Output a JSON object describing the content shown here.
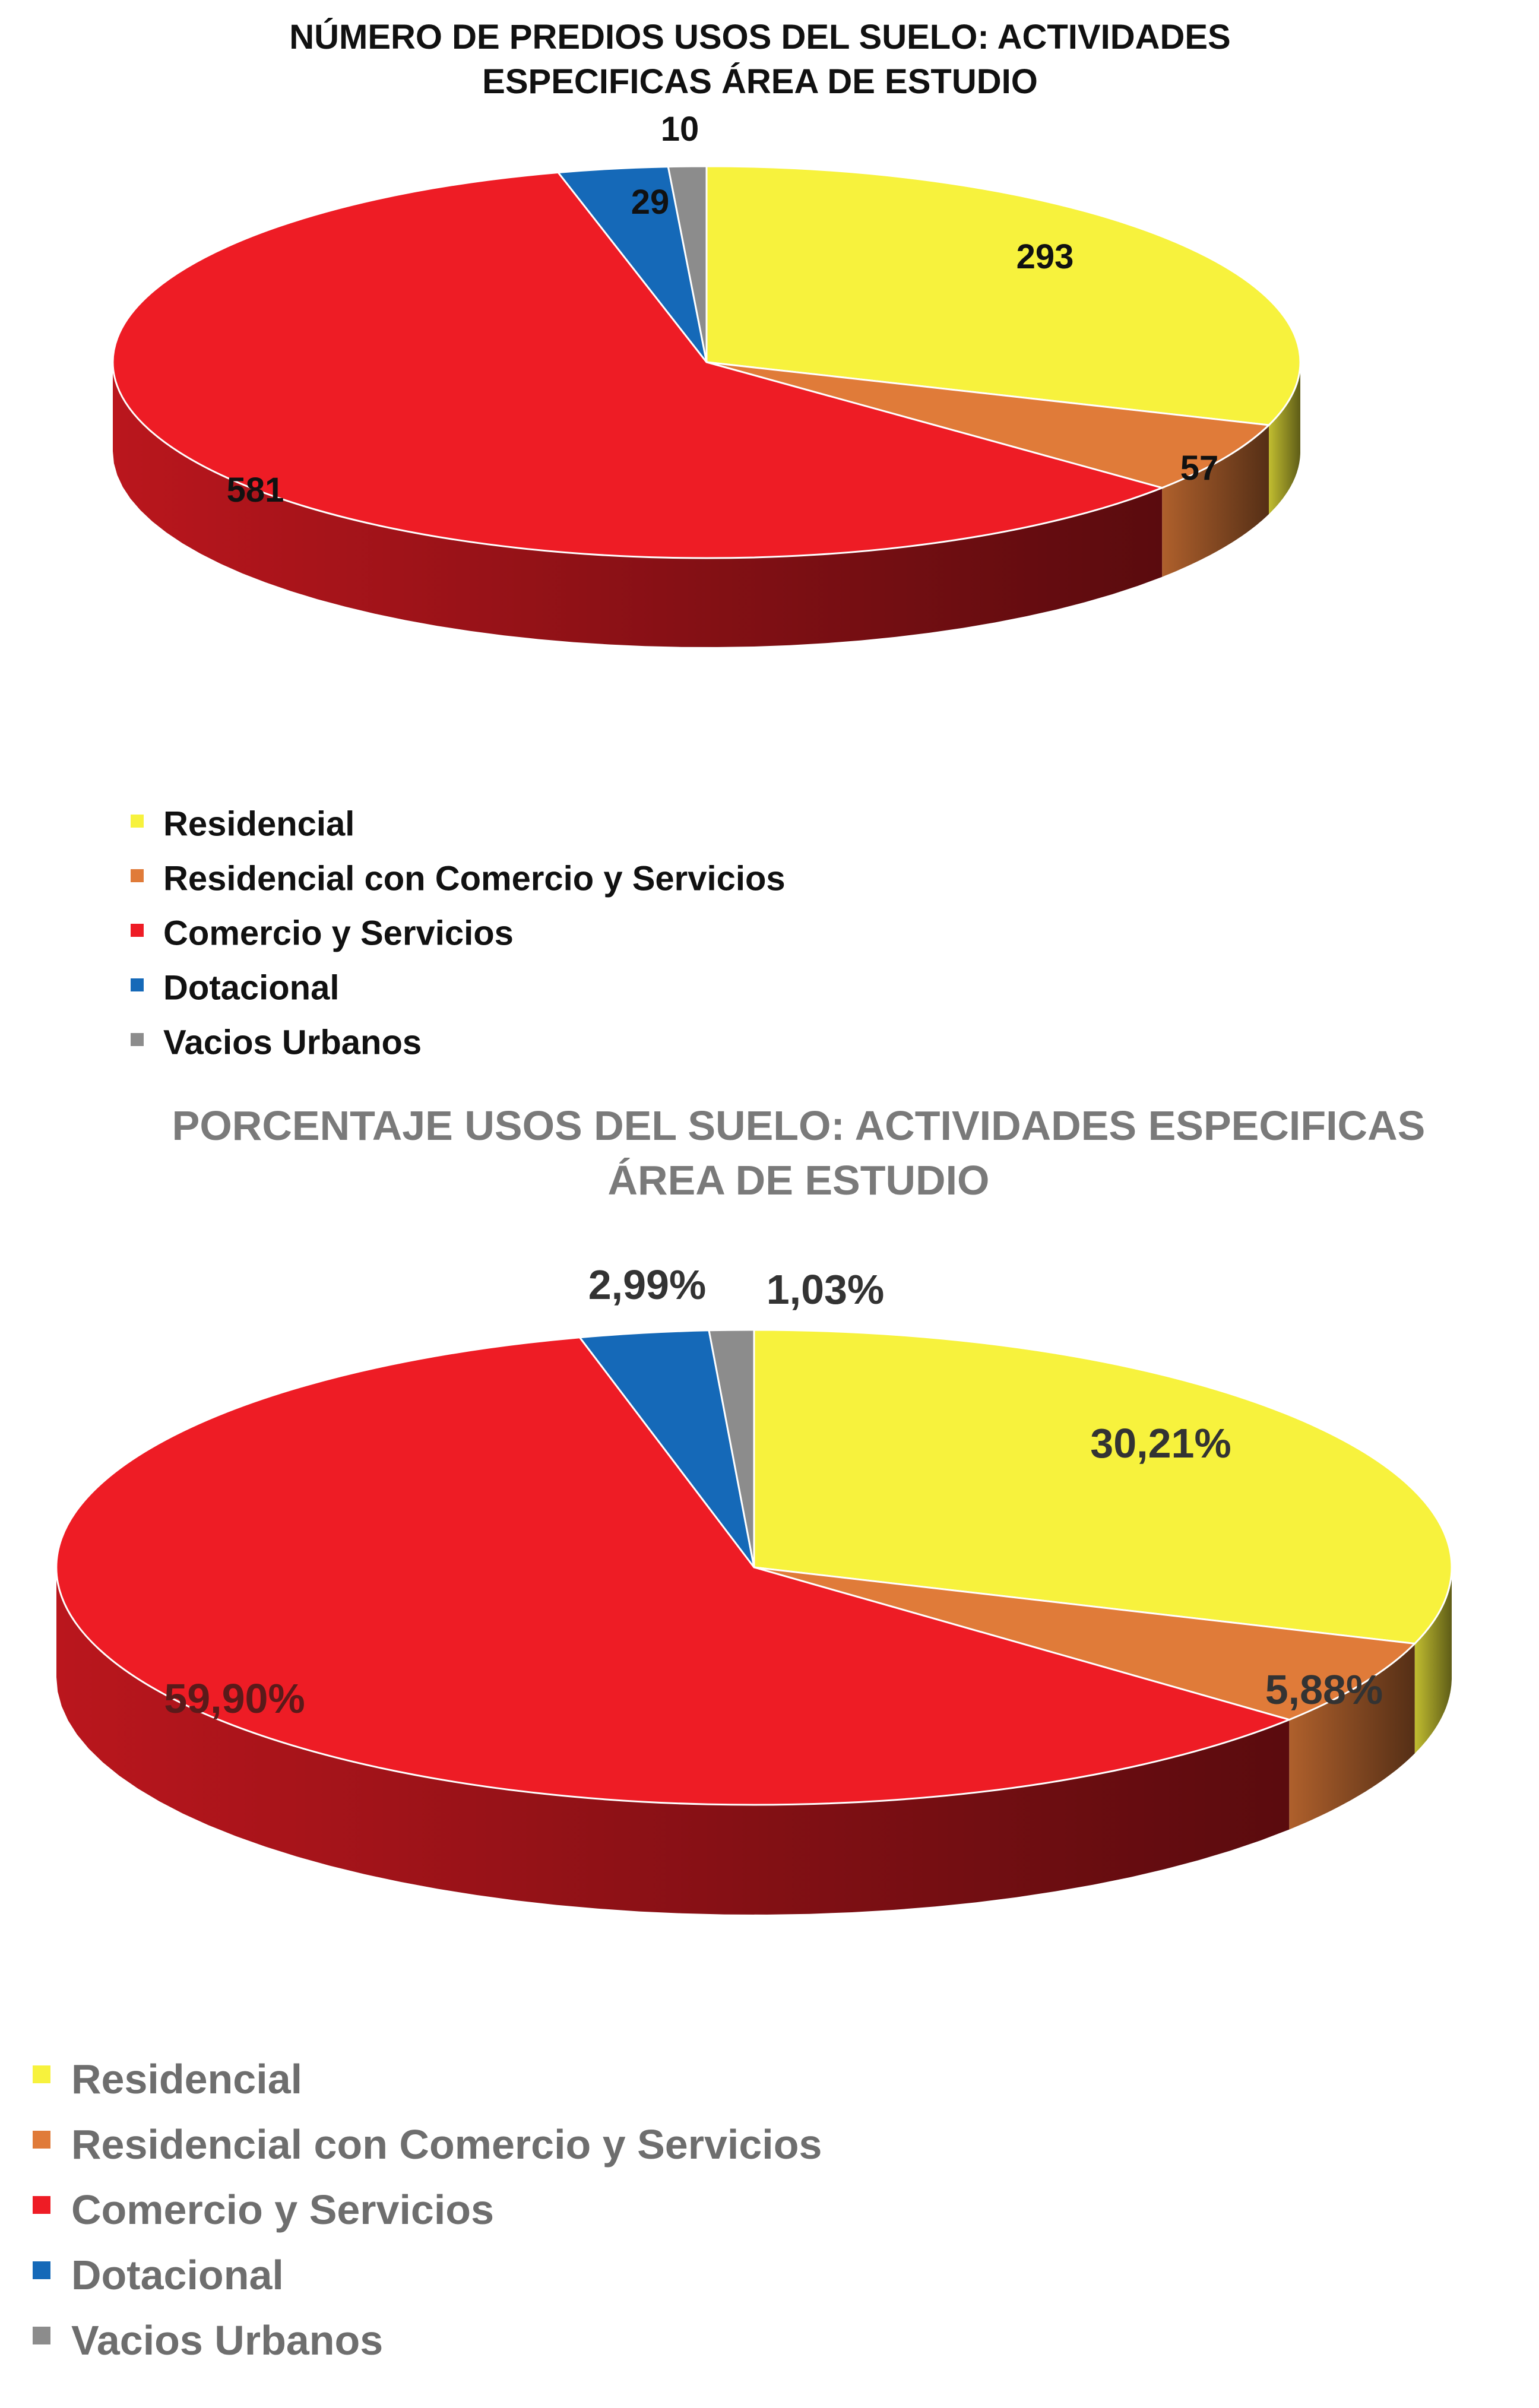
{
  "chart_data": [
    {
      "type": "pie",
      "title": "NÚMERO DE PREDIOS  USOS DEL SUELO: ACTIVIDADES ESPECIFICAS ÁREA DE ESTUDIO",
      "title_lines": [
        "NÚMERO DE PREDIOS  USOS DEL SUELO: ACTIVIDADES",
        "ESPECIFICAS ÁREA DE ESTUDIO"
      ],
      "categories": [
        "Residencial",
        "Residencial con Comercio y Servicios",
        "Comercio y Servicios",
        "Dotacional",
        "Vacios Urbanos"
      ],
      "values": [
        293,
        57,
        581,
        29,
        10
      ],
      "labels": [
        "293",
        "57",
        "581",
        "29",
        "10"
      ],
      "colors": [
        "#f7f23d",
        "#e07b39",
        "#ee1c25",
        "#1569b8",
        "#8c8c8c"
      ],
      "legend_position": "bottom-left",
      "three_d": true
    },
    {
      "type": "pie",
      "title": "PORCENTAJE USOS DEL SUELO: ACTIVIDADES ESPECIFICAS ÁREA DE ESTUDIO",
      "title_lines": [
        "PORCENTAJE USOS DEL SUELO: ACTIVIDADES ESPECIFICAS",
        "ÁREA DE ESTUDIO"
      ],
      "categories": [
        "Residencial",
        "Residencial con Comercio y Servicios",
        "Comercio y Servicios",
        "Dotacional",
        "Vacios Urbanos"
      ],
      "values": [
        30.21,
        5.88,
        59.9,
        2.99,
        1.03
      ],
      "labels": [
        "30,21%",
        "5,88%",
        "59,90%",
        "2,99%",
        "1,03%"
      ],
      "colors": [
        "#f7f23d",
        "#e07b39",
        "#ee1c25",
        "#1569b8",
        "#8c8c8c"
      ],
      "legend_position": "bottom-left",
      "three_d": true
    }
  ]
}
